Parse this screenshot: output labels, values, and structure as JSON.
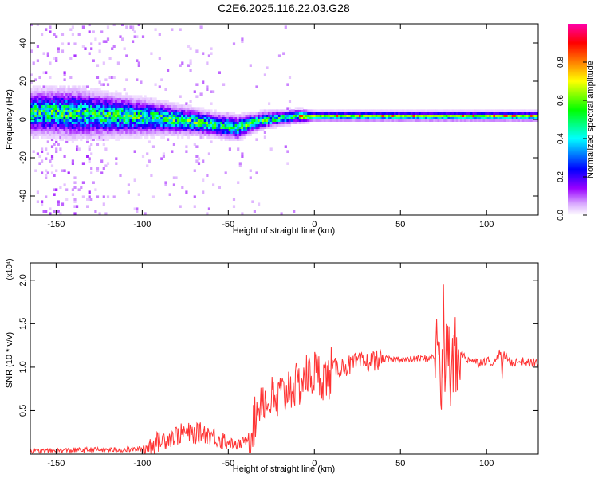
{
  "figure": {
    "title": "C2E6.2025.116.22.03.G28"
  },
  "chart_data": [
    {
      "type": "heatmap",
      "title": "C2E6.2025.116.22.03.G28",
      "xlabel": "Height of straight line (km)",
      "ylabel": "Frequency (Hz)",
      "xlim": [
        -165,
        130
      ],
      "ylim": [
        -50,
        50
      ],
      "x_ticks": [
        -150,
        -100,
        -50,
        0,
        50,
        100
      ],
      "y_ticks": [
        -40,
        -20,
        0,
        20,
        40
      ],
      "grid": false,
      "colorbar": {
        "label": "Normalized spectral amplitude",
        "range": [
          0.0,
          1.0
        ],
        "ticks": [
          0.0,
          0.2,
          0.4,
          0.6,
          0.8
        ],
        "colormap": [
          "#ffffff",
          "#d9a8ff",
          "#9900ff",
          "#0000ff",
          "#00ffff",
          "#00ff00",
          "#ffff00",
          "#ff8000",
          "#ff0000",
          "#ff00aa"
        ]
      },
      "ridge_center_hz": {
        "x": [
          -165,
          -150,
          -130,
          -110,
          -90,
          -70,
          -55,
          -45,
          -38,
          -30,
          -20,
          -10,
          0,
          20,
          50,
          75,
          100,
          130
        ],
        "y": [
          3,
          3,
          2,
          1,
          0,
          -2,
          -4,
          -5,
          -3,
          -1,
          0,
          1,
          1,
          1,
          1,
          1,
          1,
          1
        ]
      },
      "ridge_halfwidth_hz": {
        "x": [
          -165,
          -140,
          -110,
          -80,
          -60,
          -45,
          -35,
          -20,
          -10,
          0,
          50,
          100,
          130
        ],
        "y": [
          9,
          10,
          8,
          6,
          5,
          5,
          4,
          3,
          3,
          2,
          2,
          2,
          2
        ]
      }
    },
    {
      "type": "line",
      "xlabel": "Height of straight line (km)",
      "ylabel": "SNR (10 * v/v)",
      "y_multiplier": "(x10⁴)",
      "xlim": [
        -165,
        130
      ],
      "ylim": [
        0.0,
        2.2
      ],
      "x_ticks": [
        -150,
        -100,
        -50,
        0,
        50,
        100
      ],
      "y_ticks": [
        0.5,
        1.0,
        1.5,
        2.0
      ],
      "grid": false,
      "series": [
        {
          "color": "#ff3333",
          "x": [
            -165,
            -150,
            -130,
            -110,
            -100,
            -90,
            -80,
            -75,
            -70,
            -65,
            -60,
            -55,
            -50,
            -45,
            -40,
            -35,
            -32,
            -30,
            -28,
            -25,
            -22,
            -20,
            -18,
            -15,
            -12,
            -10,
            -8,
            -5,
            -2,
            0,
            2,
            5,
            8,
            10,
            15,
            20,
            25,
            30,
            35,
            40,
            45,
            50,
            55,
            60,
            65,
            70,
            72,
            73,
            74,
            75,
            76,
            77,
            78,
            79,
            80,
            81,
            82,
            83,
            85,
            88,
            90,
            95,
            100,
            105,
            108,
            109,
            110,
            112,
            115,
            120,
            125,
            130
          ],
          "y": [
            0.03,
            0.04,
            0.05,
            0.05,
            0.06,
            0.15,
            0.22,
            0.25,
            0.23,
            0.25,
            0.22,
            0.18,
            0.14,
            0.1,
            0.15,
            0.35,
            0.6,
            0.7,
            0.55,
            0.65,
            0.55,
            0.7,
            0.65,
            0.78,
            0.8,
            0.75,
            0.82,
            0.9,
            0.88,
            0.95,
            0.92,
            0.9,
            0.85,
            0.98,
            1.0,
            1.02,
            1.05,
            1.05,
            1.08,
            1.1,
            1.08,
            1.1,
            1.08,
            1.1,
            1.1,
            1.12,
            1.3,
            1.0,
            0.7,
            1.5,
            0.9,
            1.2,
            1.4,
            0.6,
            0.9,
            1.3,
            1.1,
            1.0,
            1.2,
            1.08,
            1.1,
            1.05,
            1.08,
            1.05,
            1.2,
            0.9,
            1.15,
            1.1,
            1.05,
            1.07,
            1.05,
            1.05
          ]
        }
      ]
    }
  ]
}
